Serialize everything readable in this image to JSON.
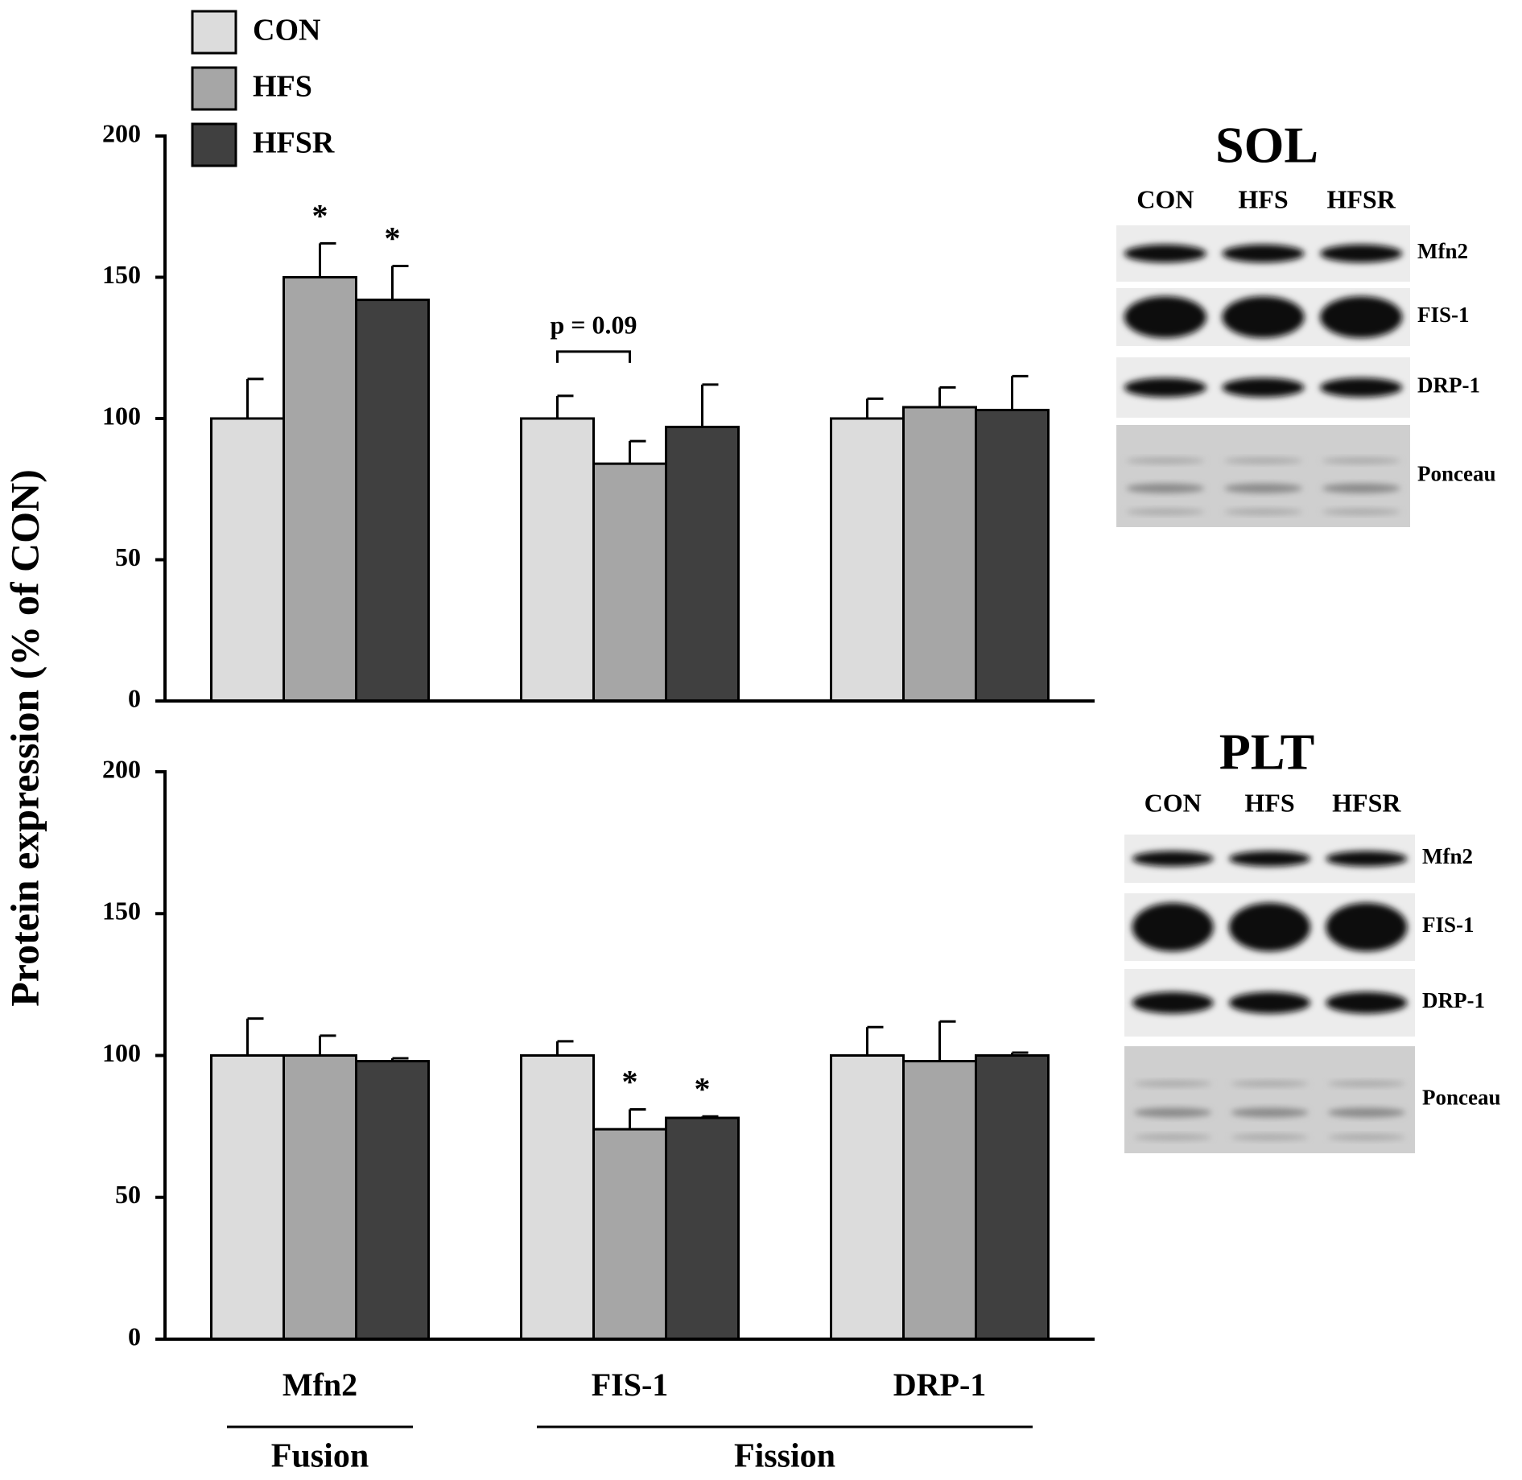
{
  "y_label": "Protein expression (% of CON)",
  "chart_data": [
    {
      "type": "bar",
      "ylim": [
        0,
        200
      ],
      "yticks": [
        0,
        50,
        100,
        150,
        200
      ],
      "series": [
        {
          "name": "CON",
          "color": "#dcdcdc",
          "values": [
            100,
            100,
            100
          ],
          "errors": [
            14,
            8,
            7
          ],
          "annotations": [
            null,
            null,
            null
          ]
        },
        {
          "name": "HFS",
          "color": "#a6a6a6",
          "values": [
            150,
            84,
            104
          ],
          "errors": [
            12,
            8,
            7
          ],
          "annotations": [
            "*",
            null,
            null
          ]
        },
        {
          "name": "HFSR",
          "color": "#404040",
          "values": [
            142,
            97,
            103
          ],
          "errors": [
            12,
            15,
            12
          ],
          "annotations": [
            "*",
            null,
            null
          ]
        }
      ],
      "bracket": {
        "text": "p = 0.09",
        "category": "FIS-1",
        "series": [
          "CON",
          "HFS"
        ]
      }
    },
    {
      "type": "bar",
      "ylim": [
        0,
        200
      ],
      "yticks": [
        0,
        50,
        100,
        150,
        200
      ],
      "categories": [
        "Mfn2",
        "FIS-1",
        "DRP-1"
      ],
      "series": [
        {
          "color": "#dcdcdc",
          "values": [
            100,
            100,
            100
          ],
          "errors": [
            13,
            5,
            10
          ],
          "annotations": [
            null,
            null,
            null
          ]
        },
        {
          "color": "#a6a6a6",
          "values": [
            100,
            74,
            98
          ],
          "errors": [
            7,
            7,
            14
          ],
          "annotations": [
            null,
            "*",
            null
          ]
        },
        {
          "color": "#404040",
          "values": [
            98,
            78,
            100
          ],
          "errors": [
            1,
            0.5,
            1
          ],
          "annotations": [
            null,
            "*",
            null
          ]
        }
      ]
    }
  ],
  "groups": [
    {
      "label": "Fusion",
      "categories": [
        "Mfn2"
      ]
    },
    {
      "label": "Fission",
      "categories": [
        "FIS-1",
        "DRP-1"
      ]
    }
  ],
  "blots": [
    {
      "title": "SOL",
      "lanes": [
        "CON",
        "HFS",
        "HFSR"
      ],
      "bands": [
        "Mfn2",
        "FIS-1",
        "DRP-1",
        "Ponceau"
      ]
    },
    {
      "title": "PLT",
      "lanes": [
        "CON",
        "HFS",
        "HFSR"
      ],
      "bands": [
        "Mfn2",
        "FIS-1",
        "DRP-1",
        "Ponceau"
      ]
    }
  ]
}
